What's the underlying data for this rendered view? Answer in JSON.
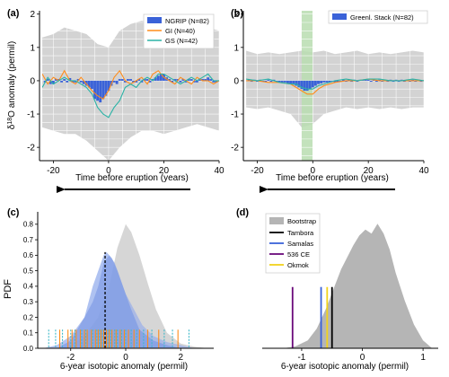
{
  "figure": {
    "arrow_label": "Time before eruption (years)",
    "ylabel_top": "δ18O anomaly (permil)",
    "ylabel_pdf": "PDF",
    "colors": {
      "band": "#d3d3d3",
      "bar": "#3a62d8",
      "gi": "#ff8c1a",
      "gs": "#2bb3a6",
      "green_band": "#b9ddb0",
      "bootstrap": "#b5b5b5",
      "tambora": "#000000",
      "samalas": "#3a62d8",
      "ce536": "#6a0a7a",
      "okmok": "#f2d21c"
    }
  },
  "chart_data": [
    {
      "panel": "(a)",
      "type": "bar",
      "title": "",
      "xlabel": "Time before eruption (years)",
      "ylabel": "δ18O anomaly (permil)",
      "xlim": [
        -25,
        40
      ],
      "ylim": [
        -2.4,
        2.1
      ],
      "xticks": [
        "-20",
        "0",
        "20",
        "40"
      ],
      "yticks": [
        "-2",
        "-1",
        "0",
        "1",
        "2"
      ],
      "grid": true,
      "legend": "top-right",
      "legend_entries": [
        "NGRIP (N=82)",
        "GI (N=40)",
        "GS (N=42)"
      ],
      "band_x": [
        -24,
        -20,
        -16,
        -12,
        -8,
        -4,
        0,
        4,
        8,
        12,
        16,
        20,
        24,
        28,
        32,
        36,
        40
      ],
      "band_upper": [
        1.3,
        1.4,
        1.6,
        1.5,
        1.4,
        1.1,
        1.0,
        1.5,
        1.7,
        1.8,
        1.7,
        1.5,
        1.6,
        1.8,
        1.9,
        1.6,
        1.5
      ],
      "band_lower": [
        -1.4,
        -1.5,
        -1.6,
        -1.6,
        -1.8,
        -2.1,
        -2.4,
        -2.0,
        -1.7,
        -1.5,
        -1.5,
        -1.6,
        -1.5,
        -1.4,
        -1.3,
        -1.4,
        -1.5
      ],
      "bar_x": [
        -23,
        -22,
        -21,
        -20,
        -19,
        -18,
        -17,
        -16,
        -15,
        -14,
        -13,
        -12,
        -11,
        -10,
        -9,
        -8,
        -7,
        -6,
        -5,
        -4,
        -3,
        -2,
        -1,
        0,
        1,
        2,
        3,
        4,
        5,
        6,
        7,
        8,
        9,
        10,
        11,
        12,
        13,
        14,
        15,
        16,
        17,
        18,
        19,
        20,
        21,
        22,
        23,
        24,
        25,
        26,
        27,
        28,
        29,
        30,
        31,
        32,
        33,
        34,
        35,
        36,
        37,
        38,
        39
      ],
      "bar_values": [
        -0.05,
        0.05,
        -0.1,
        -0.1,
        0.05,
        0.05,
        -0.05,
        0.05,
        -0.05,
        0.08,
        -0.05,
        -0.05,
        0.05,
        -0.05,
        -0.1,
        -0.15,
        -0.2,
        -0.25,
        -0.55,
        -0.6,
        -0.65,
        -0.55,
        -0.45,
        -0.3,
        -0.15,
        -0.05,
        -0.1,
        0.05,
        0.05,
        -0.05,
        0.05,
        0.05,
        -0.05,
        -0.05,
        0.05,
        -0.05,
        0.05,
        0.05,
        -0.05,
        0.05,
        0.1,
        0.15,
        0.2,
        0.2,
        0.1,
        0.05,
        -0.05,
        0.05,
        0.05,
        -0.05,
        0.05,
        -0.05,
        0.05,
        0.05,
        -0.05,
        -0.05,
        0.05,
        0.05,
        0.05,
        0.1,
        0.05,
        -0.05,
        -0.05
      ],
      "series": [
        {
          "name": "GI (N=40)",
          "x": [
            -24,
            -22,
            -20,
            -18,
            -16,
            -14,
            -12,
            -10,
            -8,
            -6,
            -4,
            -2,
            0,
            2,
            4,
            6,
            8,
            10,
            12,
            14,
            16,
            18,
            20,
            22,
            24,
            26,
            28,
            30,
            32,
            34,
            36,
            38,
            40
          ],
          "values": [
            0.2,
            -0.1,
            0.1,
            0.0,
            0.3,
            0.0,
            -0.1,
            0.1,
            -0.1,
            -0.3,
            -0.45,
            -0.55,
            -0.3,
            0.1,
            0.3,
            0.0,
            -0.1,
            0.0,
            0.1,
            -0.1,
            0.2,
            0.3,
            0.1,
            0.0,
            -0.1,
            0.1,
            0.0,
            -0.1,
            0.1,
            0.0,
            0.0,
            -0.1,
            0.0
          ]
        },
        {
          "name": "GS (N=42)",
          "x": [
            -24,
            -22,
            -20,
            -18,
            -16,
            -14,
            -12,
            -10,
            -8,
            -6,
            -4,
            -2,
            0,
            2,
            4,
            6,
            8,
            10,
            12,
            14,
            16,
            18,
            20,
            22,
            24,
            26,
            28,
            30,
            32,
            34,
            36,
            38,
            40
          ],
          "values": [
            -0.2,
            0.1,
            -0.1,
            0.0,
            0.1,
            0.0,
            0.0,
            -0.1,
            -0.2,
            -0.4,
            -0.8,
            -1.0,
            -1.1,
            -0.8,
            -0.6,
            -0.2,
            -0.1,
            -0.2,
            0.0,
            0.1,
            0.0,
            0.2,
            0.2,
            0.1,
            0.0,
            -0.1,
            0.0,
            0.1,
            0.0,
            0.1,
            0.2,
            0.0,
            0.0
          ]
        }
      ]
    },
    {
      "panel": "(b)",
      "type": "bar",
      "title": "",
      "xlabel": "Time before eruption (years)",
      "ylabel": "",
      "xlim": [
        -25,
        40
      ],
      "ylim": [
        -2.4,
        2.1
      ],
      "xticks": [
        "-20",
        "0",
        "20",
        "40"
      ],
      "yticks": [
        "-2",
        "-1",
        "0",
        "1",
        "2"
      ],
      "grid": true,
      "legend": "top-right",
      "legend_entries": [
        "Greenl. Stack (N=82)"
      ],
      "highlight_x": [
        -4,
        0
      ],
      "band_x": [
        -24,
        -20,
        -16,
        -12,
        -8,
        -4,
        0,
        4,
        8,
        12,
        16,
        20,
        24,
        28,
        32,
        36,
        40
      ],
      "band_upper": [
        0.9,
        0.8,
        0.85,
        0.8,
        0.85,
        0.9,
        0.85,
        0.9,
        0.8,
        0.85,
        0.9,
        0.8,
        0.85,
        0.8,
        0.85,
        0.9,
        0.85
      ],
      "band_lower": [
        -0.8,
        -0.85,
        -0.8,
        -0.9,
        -1.0,
        -1.4,
        -1.3,
        -1.0,
        -0.9,
        -0.8,
        -0.85,
        -0.8,
        -0.85,
        -0.8,
        -0.85,
        -0.8,
        -0.8
      ],
      "bar_x": [
        -23,
        -22,
        -21,
        -20,
        -19,
        -18,
        -17,
        -16,
        -15,
        -14,
        -13,
        -12,
        -11,
        -10,
        -9,
        -8,
        -7,
        -6,
        -5,
        -4,
        -3,
        -2,
        -1,
        0,
        1,
        2,
        3,
        4,
        5,
        6,
        7,
        8,
        9,
        10,
        11,
        12,
        13,
        14,
        15,
        16,
        17,
        18,
        19,
        20,
        21,
        22,
        23,
        24,
        25,
        26,
        27,
        28,
        29,
        30,
        31,
        32,
        33,
        34,
        35,
        36,
        37,
        38,
        39
      ],
      "bar_values": [
        0.03,
        -0.03,
        0.03,
        -0.03,
        0.03,
        -0.03,
        -0.03,
        0.03,
        -0.03,
        0.03,
        -0.03,
        -0.05,
        -0.05,
        -0.05,
        -0.08,
        -0.1,
        -0.12,
        -0.15,
        -0.2,
        -0.25,
        -0.3,
        -0.3,
        -0.25,
        -0.2,
        -0.15,
        -0.1,
        -0.08,
        -0.05,
        -0.05,
        -0.05,
        -0.03,
        -0.05,
        -0.03,
        -0.03,
        0.03,
        -0.03,
        0.03,
        -0.03,
        0.03,
        -0.03,
        0.03,
        0.03,
        0.03,
        0.03,
        -0.03,
        0.03,
        -0.03,
        0.03,
        -0.03,
        0.03,
        -0.03,
        0.03,
        -0.03,
        0.03,
        -0.03,
        0.03,
        -0.03,
        0.03,
        -0.03,
        0.03,
        -0.03,
        0.03,
        -0.03
      ],
      "series": [
        {
          "name": "",
          "x": [
            -24,
            -20,
            -16,
            -12,
            -8,
            -6,
            -4,
            -2,
            0,
            2,
            4,
            8,
            12,
            16,
            20,
            24,
            28,
            32,
            36,
            40
          ],
          "values": [
            0.0,
            0.0,
            -0.05,
            -0.05,
            -0.1,
            -0.2,
            -0.3,
            -0.4,
            -0.4,
            -0.25,
            -0.15,
            -0.05,
            0.0,
            0.0,
            0.05,
            0.0,
            0.0,
            0.0,
            0.0,
            0.0
          ]
        },
        {
          "name": "",
          "x": [
            -24,
            -20,
            -16,
            -12,
            -8,
            -6,
            -4,
            -2,
            0,
            2,
            4,
            8,
            12,
            16,
            20,
            24,
            28,
            32,
            36,
            40
          ],
          "values": [
            0.05,
            0.0,
            0.05,
            -0.05,
            -0.1,
            -0.1,
            -0.2,
            -0.25,
            -0.25,
            -0.15,
            -0.1,
            0.0,
            0.05,
            0.0,
            0.05,
            0.05,
            0.0,
            0.0,
            0.05,
            0.0
          ]
        }
      ]
    },
    {
      "panel": "(c)",
      "type": "area",
      "title": "",
      "xlabel": "6-year isotopic anomaly (permil)",
      "ylabel": "PDF",
      "xlim": [
        -3.2,
        3.2
      ],
      "ylim": [
        0,
        0.88
      ],
      "xticks": [
        "-2",
        "0",
        "2"
      ],
      "yticks": [
        "0.0",
        "0.1",
        "0.2",
        "0.3",
        "0.4",
        "0.5",
        "0.6",
        "0.7",
        "0.8"
      ],
      "grid": false,
      "legend": "none",
      "series": [
        {
          "name": "",
          "x": [
            -3.0,
            -2.5,
            -2.0,
            -1.5,
            -1.2,
            -1.0,
            -0.8,
            -0.6,
            -0.4,
            -0.2,
            0.0,
            0.3,
            0.6,
            1.0,
            1.5,
            2.0,
            2.5
          ],
          "values": [
            0.0,
            0.02,
            0.08,
            0.2,
            0.3,
            0.4,
            0.55,
            0.6,
            0.55,
            0.45,
            0.35,
            0.25,
            0.15,
            0.08,
            0.04,
            0.02,
            0.0
          ]
        },
        {
          "name": "",
          "x": [
            -2.5,
            -2.0,
            -1.5,
            -1.2,
            -1.0,
            -0.8,
            -0.7,
            -0.5,
            -0.3,
            -0.1,
            0.2,
            0.5,
            1.0,
            1.5,
            2.0
          ],
          "values": [
            0.0,
            0.05,
            0.2,
            0.4,
            0.5,
            0.6,
            0.62,
            0.58,
            0.5,
            0.4,
            0.25,
            0.12,
            0.05,
            0.02,
            0.0
          ]
        },
        {
          "name": "",
          "x": [
            -2.5,
            -2.0,
            -1.5,
            -1.0,
            -0.6,
            -0.3,
            0.0,
            0.2,
            0.5,
            0.8,
            1.1,
            1.5,
            2.0,
            2.5,
            3.0
          ],
          "values": [
            0.0,
            0.02,
            0.08,
            0.2,
            0.4,
            0.65,
            0.8,
            0.75,
            0.6,
            0.42,
            0.25,
            0.1,
            0.03,
            0.01,
            0.0
          ]
        }
      ],
      "vline_x": -0.75,
      "rug_orange": [
        -2.4,
        -2.1,
        -1.95,
        -1.8,
        -1.65,
        -1.5,
        -1.4,
        -1.25,
        -1.1,
        -1.0,
        -0.9,
        -0.8,
        -0.7,
        -0.6,
        -0.5,
        -0.35,
        -0.2,
        -0.05,
        0.1,
        0.3,
        0.5,
        0.8,
        1.2,
        1.9
      ],
      "rug_cyan": [
        -2.8,
        -2.55,
        -2.3,
        -2.0,
        -1.85,
        -1.6,
        -1.45,
        -1.2,
        -1.05,
        -0.95,
        -0.85,
        -0.65,
        -0.55,
        -0.4,
        -0.3,
        -0.15,
        0.0,
        0.2,
        0.4,
        0.65,
        0.95,
        1.4,
        1.7,
        2.3
      ]
    },
    {
      "panel": "(d)",
      "type": "area",
      "title": "",
      "xlabel": "6-year isotopic anomaly (permil)",
      "ylabel": "",
      "xlim": [
        -1.65,
        1.25
      ],
      "ylim": [
        0,
        3.45
      ],
      "xticks": [
        "-1",
        "0",
        "1"
      ],
      "yticks": [],
      "grid": false,
      "legend": "top-left",
      "legend_entries": [
        "Bootstrap",
        "Tambora",
        "Samalas",
        "536 CE",
        "Okmok"
      ],
      "series": [
        {
          "name": "Bootstrap",
          "x": [
            -1.3,
            -1.1,
            -0.9,
            -0.75,
            -0.6,
            -0.45,
            -0.35,
            -0.25,
            -0.15,
            -0.05,
            0.05,
            0.15,
            0.25,
            0.35,
            0.45,
            0.55,
            0.7,
            0.85,
            1.0,
            1.15
          ],
          "values": [
            0.0,
            0.05,
            0.2,
            0.5,
            1.0,
            1.6,
            2.0,
            2.3,
            2.6,
            2.85,
            3.0,
            2.9,
            3.15,
            2.9,
            2.5,
            1.9,
            1.2,
            0.6,
            0.2,
            0.0
          ]
        }
      ],
      "vlines": [
        {
          "name": "Tambora",
          "x": -0.5,
          "height": 1.55
        },
        {
          "name": "Samalas",
          "x": -0.68,
          "height": 1.55
        },
        {
          "name": "536 CE",
          "x": -1.15,
          "height": 1.55
        },
        {
          "name": "Okmok",
          "x": -0.58,
          "height": 1.55
        }
      ]
    }
  ]
}
